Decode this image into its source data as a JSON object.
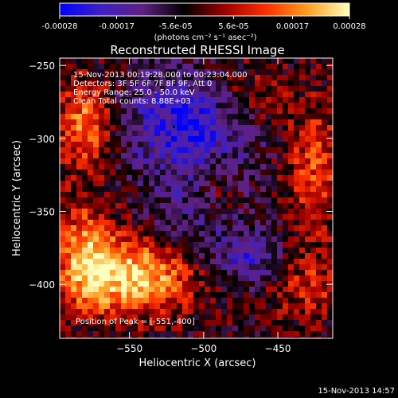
{
  "colorbar": {
    "tick_labels": [
      "-0.00028",
      "-0.00017",
      "-5.6e-05",
      "5.6e-05",
      "0.00017",
      "0.00028"
    ],
    "tick_values": [
      -0.00028,
      -0.00017,
      -5.6e-05,
      5.6e-05,
      0.00017,
      0.00028
    ],
    "range": [
      -0.00028,
      0.00028
    ],
    "unit_label": "(photons cm⁻² s⁻¹ asec⁻²)",
    "colors": [
      "#0000ff",
      "#4020c0",
      "#602080",
      "#000000",
      "#a00000",
      "#ff3000",
      "#ffa020",
      "#ffffc0"
    ]
  },
  "chart_data": {
    "type": "heatmap",
    "title": "Reconstructed RHESSI Image",
    "xlabel": "Heliocentric X (arcsec)",
    "ylabel": "Heliocentric Y (arcsec)",
    "xlim": [
      -597,
      -413
    ],
    "ylim": [
      -437,
      -245
    ],
    "x_ticks": [
      -550,
      -500,
      -450
    ],
    "y_ticks": [
      -250,
      -300,
      -350,
      -400
    ],
    "x_tick_labels": [
      "−550",
      "−500",
      "−450"
    ],
    "y_tick_labels": [
      "−250",
      "−300",
      "−350",
      "−400"
    ],
    "annotations": [
      "15-Nov-2013 00:19:28.000 to 00:23:04.000",
      "Detectors: 3F 5F 6F 7F 8F 9F, Att 0",
      "Energy Range: 25.0 - 50.0 keV",
      "Clean     Total counts: 8.88E+03"
    ],
    "peak_label": "Position of Peak = [-551,-400]",
    "peak_position": [
      -551,
      -400
    ],
    "marker_position": [
      -520,
      -292
    ],
    "colormap": [
      "#0000ff",
      "#4020c0",
      "#602080",
      "#000000",
      "#a00000",
      "#ff3000",
      "#ffa020",
      "#ffffc0"
    ],
    "blobs": [
      {
        "x": -545,
        "y": -395,
        "amp": 1.0,
        "sx": 26,
        "sy": 18
      },
      {
        "x": -580,
        "y": -380,
        "amp": 0.8,
        "sx": 14,
        "sy": 24
      },
      {
        "x": -580,
        "y": -290,
        "amp": 0.75,
        "sx": 13,
        "sy": 22
      },
      {
        "x": -425,
        "y": -320,
        "amp": 0.55,
        "sx": 14,
        "sy": 30
      },
      {
        "x": -430,
        "y": -400,
        "amp": 0.4,
        "sx": 22,
        "sy": 18
      },
      {
        "x": -470,
        "y": -270,
        "amp": 0.35,
        "sx": 20,
        "sy": 16
      },
      {
        "x": -490,
        "y": -335,
        "amp": 0.3,
        "sx": 10,
        "sy": 18
      },
      {
        "x": -510,
        "y": -292,
        "amp": -0.75,
        "sx": 30,
        "sy": 26
      },
      {
        "x": -470,
        "y": -382,
        "amp": -0.55,
        "sx": 18,
        "sy": 14
      },
      {
        "x": -505,
        "y": -355,
        "amp": -0.3,
        "sx": 22,
        "sy": 18
      }
    ]
  },
  "footer": {
    "timestamp": "15-Nov-2013 14:57"
  }
}
